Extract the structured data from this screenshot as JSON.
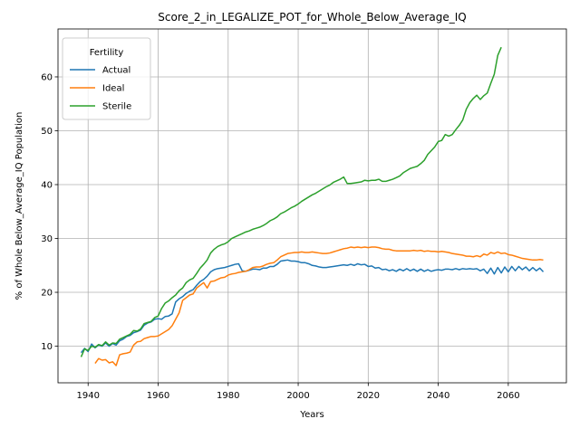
{
  "chart_data": {
    "type": "line",
    "title": "Score_2_in_LEGALIZE_POT_for_Whole_Below_Average_IQ",
    "x_label": "Years",
    "y_label": "% of Whole Below_Average_IQ Population",
    "legend_title": "Fertility",
    "legend_position": "upper left",
    "grid": true,
    "xlim": [
      1931.4,
      2076.6
    ],
    "ylim": [
      3.2,
      68.9
    ],
    "xticks": [
      1940,
      1960,
      1980,
      2000,
      2020,
      2040,
      2060
    ],
    "yticks": [
      10,
      20,
      30,
      40,
      50,
      60
    ],
    "x": [
      1938,
      1939,
      1940,
      1941,
      1942,
      1943,
      1944,
      1945,
      1946,
      1947,
      1948,
      1949,
      1950,
      1951,
      1952,
      1953,
      1954,
      1955,
      1956,
      1957,
      1958,
      1959,
      1960,
      1961,
      1962,
      1963,
      1964,
      1965,
      1966,
      1967,
      1968,
      1969,
      1970,
      1971,
      1972,
      1973,
      1974,
      1975,
      1976,
      1977,
      1978,
      1979,
      1980,
      1981,
      1982,
      1983,
      1984,
      1985,
      1986,
      1987,
      1988,
      1989,
      1990,
      1991,
      1992,
      1993,
      1994,
      1995,
      1996,
      1997,
      1998,
      1999,
      2000,
      2001,
      2002,
      2003,
      2004,
      2005,
      2006,
      2007,
      2008,
      2009,
      2010,
      2011,
      2012,
      2013,
      2014,
      2015,
      2016,
      2017,
      2018,
      2019,
      2020,
      2021,
      2022,
      2023,
      2024,
      2025,
      2026,
      2027,
      2028,
      2029,
      2030,
      2031,
      2032,
      2033,
      2034,
      2035,
      2036,
      2037,
      2038,
      2039,
      2040,
      2041,
      2042,
      2043,
      2044,
      2045,
      2046,
      2047,
      2048,
      2049,
      2050,
      2051,
      2052,
      2053,
      2054,
      2055,
      2056,
      2057,
      2058,
      2059,
      2060,
      2061,
      2062,
      2063,
      2064,
      2065,
      2066,
      2067,
      2068,
      2069,
      2070
    ],
    "series": [
      {
        "name": "Actual",
        "color": "#1f77b4",
        "values": [
          8.8,
          9.6,
          9.0,
          10.4,
          9.7,
          10.2,
          10.0,
          10.6,
          10.0,
          10.5,
          10.2,
          11.0,
          11.3,
          11.8,
          12.0,
          12.5,
          12.7,
          13.0,
          13.9,
          14.3,
          14.5,
          15.0,
          15.1,
          15.0,
          15.5,
          15.6,
          16.0,
          18.2,
          18.8,
          19.2,
          19.8,
          20.2,
          20.5,
          21.3,
          22.0,
          22.4,
          23.0,
          23.8,
          24.2,
          24.4,
          24.5,
          24.6,
          24.8,
          25.0,
          25.2,
          25.3,
          24.0,
          23.9,
          24.1,
          24.3,
          24.3,
          24.2,
          24.5,
          24.5,
          24.8,
          24.8,
          25.2,
          25.8,
          25.9,
          26.0,
          25.8,
          25.8,
          25.7,
          25.5,
          25.5,
          25.3,
          25.0,
          24.9,
          24.7,
          24.6,
          24.6,
          24.7,
          24.8,
          24.9,
          25.0,
          25.1,
          25.0,
          25.2,
          25.0,
          25.3,
          25.1,
          25.2,
          24.8,
          24.9,
          24.5,
          24.6,
          24.2,
          24.3,
          24.0,
          24.2,
          23.9,
          24.3,
          24.0,
          24.4,
          24.0,
          24.3,
          23.9,
          24.3,
          23.9,
          24.2,
          23.9,
          24.1,
          24.2,
          24.1,
          24.3,
          24.3,
          24.2,
          24.4,
          24.2,
          24.4,
          24.3,
          24.4,
          24.3,
          24.4,
          24.0,
          24.3,
          23.5,
          24.5,
          23.4,
          24.6,
          23.6,
          24.7,
          23.8,
          24.8,
          24.0,
          24.8,
          24.2,
          24.7,
          24.0,
          24.6,
          24.0,
          24.5,
          23.8
        ]
      },
      {
        "name": "Ideal",
        "color": "#ff7f0e",
        "values": [
          null,
          null,
          null,
          null,
          6.8,
          7.7,
          7.4,
          7.5,
          6.9,
          7.1,
          6.4,
          8.4,
          8.6,
          8.7,
          8.9,
          10.2,
          10.8,
          10.9,
          11.4,
          11.6,
          11.8,
          11.8,
          11.9,
          12.3,
          12.7,
          13.1,
          13.8,
          15.0,
          16.2,
          18.5,
          19.0,
          19.5,
          19.7,
          20.8,
          21.3,
          21.8,
          20.8,
          22.0,
          22.1,
          22.4,
          22.7,
          22.8,
          23.2,
          23.4,
          23.5,
          23.7,
          23.8,
          23.9,
          24.2,
          24.6,
          24.7,
          24.7,
          24.9,
          25.2,
          25.4,
          25.5,
          26.0,
          26.6,
          26.9,
          27.2,
          27.3,
          27.4,
          27.4,
          27.5,
          27.4,
          27.4,
          27.5,
          27.4,
          27.3,
          27.2,
          27.2,
          27.3,
          27.5,
          27.7,
          27.9,
          28.1,
          28.2,
          28.4,
          28.3,
          28.4,
          28.3,
          28.4,
          28.3,
          28.4,
          28.4,
          28.3,
          28.1,
          28.0,
          28.0,
          27.8,
          27.7,
          27.7,
          27.7,
          27.7,
          27.7,
          27.8,
          27.7,
          27.8,
          27.6,
          27.7,
          27.6,
          27.6,
          27.5,
          27.6,
          27.5,
          27.4,
          27.2,
          27.1,
          27.0,
          26.9,
          26.7,
          26.7,
          26.6,
          26.8,
          26.6,
          27.1,
          26.9,
          27.4,
          27.2,
          27.5,
          27.2,
          27.3,
          27.0,
          26.9,
          26.7,
          26.5,
          26.3,
          26.2,
          26.1,
          26.0,
          26.0,
          26.1,
          26.0
        ]
      },
      {
        "name": "Sterile",
        "color": "#2ca02c",
        "values": [
          8.0,
          9.5,
          9.2,
          10.0,
          9.8,
          10.3,
          10.1,
          10.8,
          10.2,
          10.6,
          10.5,
          11.3,
          11.6,
          11.9,
          12.2,
          12.9,
          12.8,
          13.2,
          14.2,
          14.4,
          14.6,
          15.3,
          15.6,
          17.0,
          18.0,
          18.4,
          19.0,
          19.5,
          20.3,
          20.8,
          21.8,
          22.3,
          22.6,
          23.5,
          24.5,
          25.2,
          26.0,
          27.3,
          28.0,
          28.5,
          28.8,
          29.0,
          29.4,
          30.0,
          30.3,
          30.6,
          30.9,
          31.2,
          31.4,
          31.7,
          31.9,
          32.1,
          32.4,
          32.8,
          33.3,
          33.6,
          34.0,
          34.6,
          34.9,
          35.3,
          35.7,
          36.0,
          36.4,
          36.9,
          37.3,
          37.7,
          38.1,
          38.4,
          38.8,
          39.2,
          39.6,
          39.9,
          40.4,
          40.7,
          41.0,
          41.4,
          40.2,
          40.2,
          40.3,
          40.4,
          40.5,
          40.8,
          40.7,
          40.8,
          40.8,
          41.0,
          40.6,
          40.6,
          40.8,
          41.0,
          41.3,
          41.6,
          42.2,
          42.6,
          43.0,
          43.2,
          43.4,
          43.9,
          44.5,
          45.6,
          46.3,
          47.0,
          48.0,
          48.2,
          49.3,
          49.0,
          49.3,
          50.2,
          51.0,
          52.0,
          54.0,
          55.2,
          56.0,
          56.6,
          55.8,
          56.5,
          57.0,
          58.8,
          60.5,
          64.0,
          65.5,
          null,
          null,
          null,
          null,
          null,
          null,
          null,
          null,
          null,
          null,
          null,
          null
        ]
      }
    ]
  }
}
